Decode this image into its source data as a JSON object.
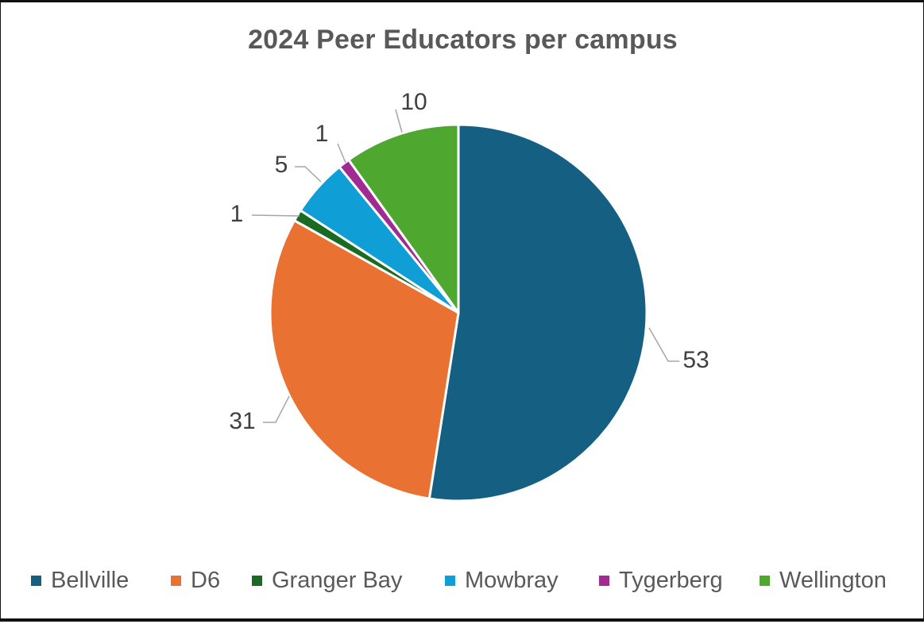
{
  "chart_data": {
    "type": "pie",
    "title": "2024 Peer Educators per campus",
    "categories": [
      "Bellville",
      "D6",
      "Granger Bay",
      "Mowbray",
      "Tygerberg",
      "Wellington"
    ],
    "values": [
      53,
      31,
      1,
      5,
      1,
      10
    ],
    "colors": [
      "#156082",
      "#E97132",
      "#196B24",
      "#0F9ED5",
      "#A02B93",
      "#4EA72E"
    ],
    "data_labels": [
      "53",
      "31",
      "1",
      "5",
      "1",
      "10"
    ],
    "legend": {
      "placement": "bottom",
      "entries": [
        "Bellville",
        "D6",
        "Granger Bay",
        "Mowbray",
        "Tygerberg",
        "Wellington"
      ]
    },
    "start_angle": "12 o'clock",
    "direction": "clockwise"
  }
}
